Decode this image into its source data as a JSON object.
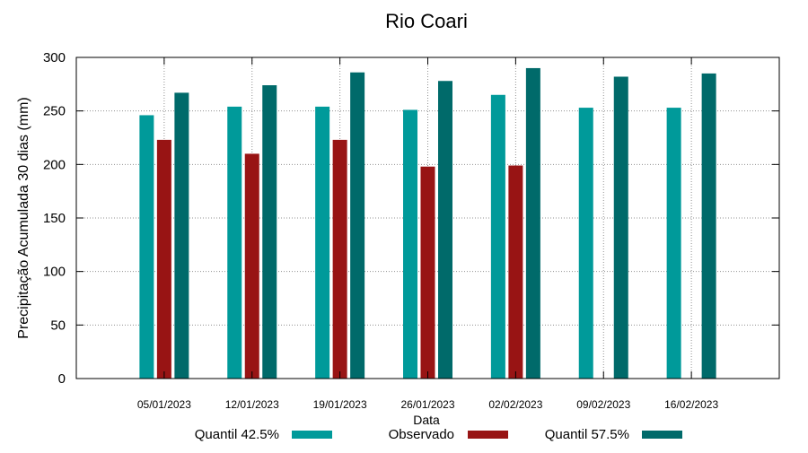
{
  "chart_data": {
    "type": "bar",
    "title": "Rio Coari",
    "xlabel": "Data",
    "ylabel": "Precipitação Acumulada 30 dias (mm)",
    "ylim": [
      0,
      300
    ],
    "yticks": [
      0,
      50,
      100,
      150,
      200,
      250,
      300
    ],
    "grid": true,
    "legend_position": "bottom",
    "categories": [
      "05/01/2023",
      "12/01/2023",
      "19/01/2023",
      "26/01/2023",
      "02/02/2023",
      "09/02/2023",
      "16/02/2023"
    ],
    "series": [
      {
        "name": "Quantil 42.5%",
        "color": "#009a9a",
        "values": [
          246,
          254,
          254,
          251,
          265,
          253,
          253
        ]
      },
      {
        "name": "Observado",
        "color": "#981414",
        "values": [
          223,
          210,
          223,
          198,
          199,
          null,
          null
        ]
      },
      {
        "name": "Quantil 57.5%",
        "color": "#006a6a",
        "values": [
          267,
          274,
          286,
          278,
          290,
          282,
          285
        ]
      }
    ]
  }
}
